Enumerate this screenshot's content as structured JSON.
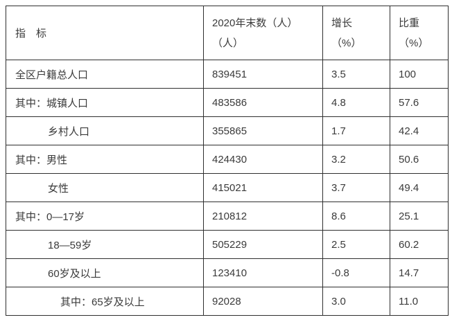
{
  "table": {
    "header": {
      "indicator": "指　标",
      "yearend_line1": "2020年末数（人）",
      "yearend_line2": "（人）",
      "growth_line1": "增长",
      "growth_line2": "（%）",
      "share_line1": "比重",
      "share_line2": "（%）"
    },
    "rows": [
      {
        "label": "全区户籍总人口",
        "value": "839451",
        "growth": "3.5",
        "share": "100"
      },
      {
        "label": "其中：城镇人口",
        "value": "483586",
        "growth": "4.8",
        "share": "57.6"
      },
      {
        "label": "乡村人口",
        "value": "355865",
        "growth": "1.7",
        "share": "42.4"
      },
      {
        "label": "其中：男性",
        "value": "424430",
        "growth": "3.2",
        "share": "50.6"
      },
      {
        "label": "女性",
        "value": "415021",
        "growth": "3.7",
        "share": "49.4"
      },
      {
        "label": "其中：0—17岁",
        "value": "210812",
        "growth": "8.6",
        "share": "25.1"
      },
      {
        "label": "18—59岁",
        "value": "505229",
        "growth": "2.5",
        "share": "60.2"
      },
      {
        "label": "60岁及以上",
        "value": "123410",
        "growth": "-0.8",
        "share": "14.7"
      },
      {
        "label": "其中：65岁及以上",
        "value": "92028",
        "growth": "3.0",
        "share": "11.0"
      }
    ]
  },
  "colors": {
    "text": "#3a3a3a",
    "border": "#2e2e2e",
    "background": "#ffffff"
  }
}
